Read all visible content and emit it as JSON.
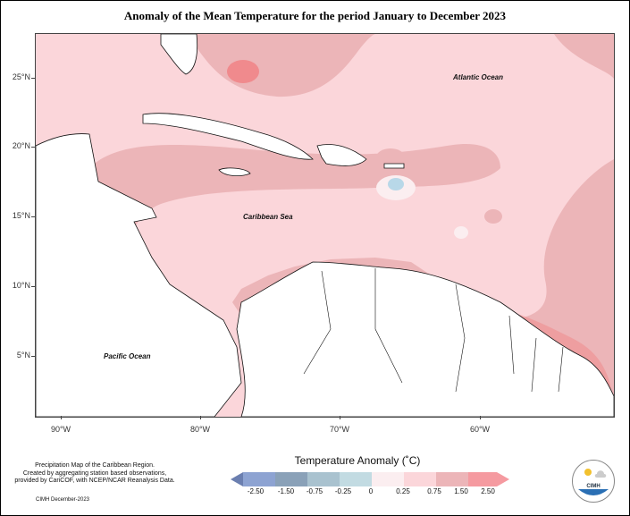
{
  "title": "Anomaly of the Mean Temperature for the period January to December 2023",
  "map": {
    "y_labels": [
      "25°N",
      "20°N",
      "15°N",
      "10°N",
      "5°N"
    ],
    "x_labels": [
      "90°W",
      "80°W",
      "70°W",
      "60°W"
    ],
    "oceans": {
      "atlantic": "Atlantic Ocean",
      "caribbean": "Caribbean Sea",
      "pacific": "Pacific Ocean"
    },
    "colors": {
      "light_pink": "#fbd6da",
      "medium_pink": "#ecb5b8",
      "red": "#f08a8d",
      "light_blue": "#b8d8e8",
      "land": "#ffffff"
    }
  },
  "legend": {
    "title": "Temperature Anomaly (˚C)",
    "labels": [
      "-2.50",
      "-1.50",
      "-0.75",
      "-0.25",
      "0",
      "0.25",
      "0.75",
      "1.50",
      "2.50"
    ],
    "colors": [
      "#6b7fb0",
      "#8da3d2",
      "#8aa1b8",
      "#c2dbe2",
      "#fbeef0",
      "#fbd6da",
      "#ecb5b8",
      "#f59aa0"
    ]
  },
  "credits": {
    "line1": "Precipitation Map of the Caribbean Region.",
    "line2": "Created by aggregating station based observations,",
    "line3": "provided by CariCOF, with NCEP/NCAR Reanalysis Data.",
    "footer": "CIMH December-2023"
  },
  "logo": {
    "text": "CIMH"
  }
}
